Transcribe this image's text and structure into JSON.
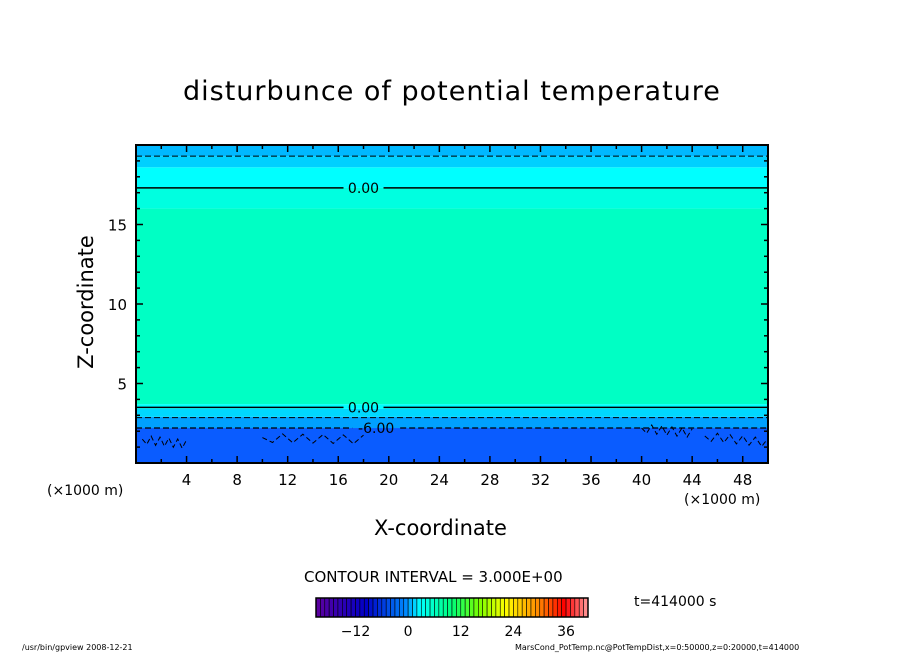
{
  "chart_data": {
    "type": "contour",
    "title": "disturbunce of potential temperature",
    "xlabel": "X-coordinate",
    "ylabel": "Z-coordinate",
    "x_unit_label": "(×1000 m)",
    "y_unit_label": "(×1000 m)",
    "xlim": [
      0,
      50
    ],
    "ylim": [
      0,
      20
    ],
    "x_ticks": [
      4,
      8,
      12,
      16,
      20,
      24,
      28,
      32,
      36,
      40,
      44,
      48
    ],
    "y_ticks": [
      5,
      10,
      15
    ],
    "x_minor_step": 2,
    "y_minor_step": 1,
    "bands": [
      {
        "z0": 0,
        "z1": 2.2,
        "color": "#0a5cff"
      },
      {
        "z0": 2.2,
        "z1": 2.9,
        "color": "#00a0ff"
      },
      {
        "z0": 2.9,
        "z1": 3.4,
        "color": "#00d8ff"
      },
      {
        "z0": 3.4,
        "z1": 3.7,
        "color": "#00ffff"
      },
      {
        "z0": 3.7,
        "z1": 16.0,
        "color": "#00ffc4"
      },
      {
        "z0": 16.0,
        "z1": 17.3,
        "color": "#00ffe0"
      },
      {
        "z0": 17.3,
        "z1": 18.6,
        "color": "#00ffff"
      },
      {
        "z0": 18.6,
        "z1": 19.3,
        "color": "#00d0ff"
      },
      {
        "z0": 19.3,
        "z1": 20,
        "color": "#00b8ff"
      }
    ],
    "contours": [
      {
        "z": 19.3,
        "style": "dashed",
        "label": ""
      },
      {
        "z": 17.3,
        "style": "solid",
        "label": "0.00",
        "label_x": 18
      },
      {
        "z": 3.5,
        "style": "solid",
        "label": "0.00",
        "label_x": 18
      },
      {
        "z": 2.85,
        "style": "dashed",
        "label": ""
      },
      {
        "z": 2.2,
        "style": "dashed",
        "label": "-6.00",
        "label_x": 19
      }
    ],
    "contour_interval": "CONTOUR INTERVAL = 3.000E+00",
    "colorbar": {
      "range": [
        -21,
        41
      ],
      "step": 1,
      "tick_labels": [
        "-12",
        "0",
        "12",
        "24",
        "36"
      ],
      "tick_values": [
        -12,
        0,
        12,
        24,
        36
      ]
    },
    "time_label": "t=414000 s"
  },
  "footer": {
    "left": "/usr/bin/gpview   2008-12-21",
    "right": "MarsCond_PotTemp.nc@PotTempDist,x=0:50000,z=0:20000,t=414000"
  }
}
